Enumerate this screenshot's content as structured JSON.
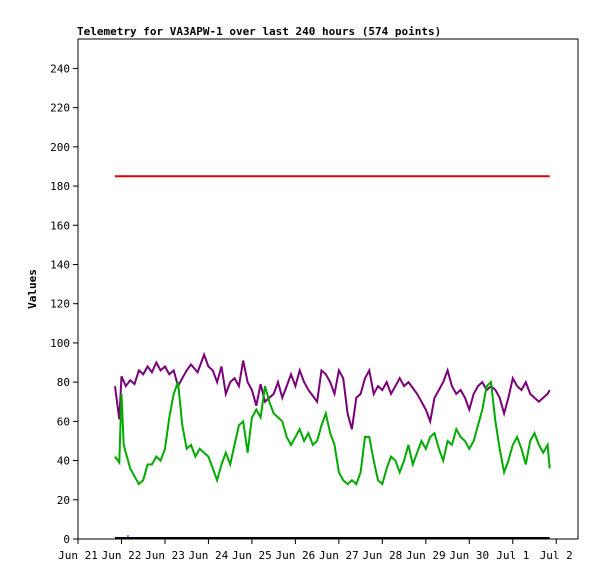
{
  "chart_data": {
    "type": "line",
    "title": "Telemetry for VA3APW-1 over last 240 hours (574 points)",
    "xlabel": "",
    "ylabel": "Values",
    "ylim": [
      0,
      255
    ],
    "xlim": [
      0,
      11.5
    ],
    "x_ticks": [
      {
        "x": 0,
        "label": "Jun 21"
      },
      {
        "x": 1,
        "label": "Jun 22"
      },
      {
        "x": 2,
        "label": "Jun 23"
      },
      {
        "x": 3,
        "label": "Jun 24"
      },
      {
        "x": 4,
        "label": "Jun 25"
      },
      {
        "x": 5,
        "label": "Jun 26"
      },
      {
        "x": 6,
        "label": "Jun 27"
      },
      {
        "x": 7,
        "label": "Jun 28"
      },
      {
        "x": 8,
        "label": "Jun 29"
      },
      {
        "x": 9,
        "label": "Jun 30"
      },
      {
        "x": 10,
        "label": "Jul 1"
      },
      {
        "x": 11,
        "label": "Jul 2"
      }
    ],
    "y_ticks": [
      0,
      20,
      40,
      60,
      80,
      100,
      120,
      140,
      160,
      180,
      200,
      220,
      240
    ],
    "grid": false,
    "series": [
      {
        "color": "#dd0000",
        "points": [
          [
            0.85,
            185
          ],
          [
            10.85,
            185
          ]
        ]
      },
      {
        "color": "#7a007a",
        "points": [
          [
            0.85,
            78
          ],
          [
            0.95,
            61
          ],
          [
            1.0,
            83
          ],
          [
            1.1,
            78
          ],
          [
            1.2,
            81
          ],
          [
            1.3,
            79
          ],
          [
            1.4,
            86
          ],
          [
            1.5,
            84
          ],
          [
            1.6,
            88
          ],
          [
            1.7,
            85
          ],
          [
            1.8,
            90
          ],
          [
            1.9,
            86
          ],
          [
            2.0,
            88
          ],
          [
            2.1,
            84
          ],
          [
            2.2,
            86
          ],
          [
            2.3,
            78
          ],
          [
            2.4,
            82
          ],
          [
            2.5,
            86
          ],
          [
            2.6,
            89
          ],
          [
            2.75,
            85
          ],
          [
            2.9,
            94
          ],
          [
            3.0,
            88
          ],
          [
            3.1,
            86
          ],
          [
            3.2,
            80
          ],
          [
            3.3,
            88
          ],
          [
            3.4,
            74
          ],
          [
            3.5,
            80
          ],
          [
            3.6,
            82
          ],
          [
            3.7,
            78
          ],
          [
            3.8,
            91
          ],
          [
            3.9,
            80
          ],
          [
            4.0,
            76
          ],
          [
            4.1,
            68
          ],
          [
            4.2,
            79
          ],
          [
            4.3,
            70
          ],
          [
            4.4,
            72
          ],
          [
            4.5,
            74
          ],
          [
            4.6,
            80
          ],
          [
            4.7,
            72
          ],
          [
            4.8,
            78
          ],
          [
            4.9,
            84
          ],
          [
            5.0,
            78
          ],
          [
            5.1,
            86
          ],
          [
            5.2,
            80
          ],
          [
            5.3,
            76
          ],
          [
            5.4,
            73
          ],
          [
            5.5,
            70
          ],
          [
            5.6,
            86
          ],
          [
            5.7,
            84
          ],
          [
            5.8,
            80
          ],
          [
            5.9,
            74
          ],
          [
            6.0,
            86
          ],
          [
            6.1,
            82
          ],
          [
            6.2,
            64
          ],
          [
            6.3,
            56
          ],
          [
            6.4,
            72
          ],
          [
            6.5,
            74
          ],
          [
            6.6,
            82
          ],
          [
            6.7,
            86
          ],
          [
            6.8,
            74
          ],
          [
            6.9,
            78
          ],
          [
            7.0,
            76
          ],
          [
            7.1,
            80
          ],
          [
            7.2,
            74
          ],
          [
            7.3,
            78
          ],
          [
            7.4,
            82
          ],
          [
            7.5,
            78
          ],
          [
            7.6,
            80
          ],
          [
            7.7,
            77
          ],
          [
            7.8,
            74
          ],
          [
            7.9,
            70
          ],
          [
            8.0,
            66
          ],
          [
            8.1,
            60
          ],
          [
            8.2,
            72
          ],
          [
            8.3,
            76
          ],
          [
            8.4,
            80
          ],
          [
            8.5,
            86
          ],
          [
            8.6,
            78
          ],
          [
            8.7,
            74
          ],
          [
            8.8,
            76
          ],
          [
            8.9,
            72
          ],
          [
            9.0,
            66
          ],
          [
            9.1,
            74
          ],
          [
            9.2,
            78
          ],
          [
            9.3,
            80
          ],
          [
            9.4,
            76
          ],
          [
            9.5,
            78
          ],
          [
            9.6,
            76
          ],
          [
            9.7,
            72
          ],
          [
            9.8,
            64
          ],
          [
            9.9,
            72
          ],
          [
            10.0,
            82
          ],
          [
            10.1,
            78
          ],
          [
            10.2,
            76
          ],
          [
            10.3,
            80
          ],
          [
            10.4,
            74
          ],
          [
            10.5,
            72
          ],
          [
            10.6,
            70
          ],
          [
            10.7,
            72
          ],
          [
            10.8,
            74
          ],
          [
            10.85,
            76
          ]
        ]
      },
      {
        "color": "#00aa00",
        "points": [
          [
            0.85,
            42
          ],
          [
            0.95,
            39
          ],
          [
            1.0,
            74
          ],
          [
            1.05,
            48
          ],
          [
            1.1,
            44
          ],
          [
            1.2,
            36
          ],
          [
            1.3,
            32
          ],
          [
            1.4,
            28
          ],
          [
            1.5,
            30
          ],
          [
            1.6,
            38
          ],
          [
            1.7,
            38
          ],
          [
            1.8,
            42
          ],
          [
            1.9,
            40
          ],
          [
            2.0,
            46
          ],
          [
            2.1,
            62
          ],
          [
            2.2,
            74
          ],
          [
            2.3,
            80
          ],
          [
            2.4,
            58
          ],
          [
            2.5,
            46
          ],
          [
            2.6,
            48
          ],
          [
            2.7,
            42
          ],
          [
            2.8,
            46
          ],
          [
            2.9,
            44
          ],
          [
            3.0,
            42
          ],
          [
            3.1,
            36
          ],
          [
            3.2,
            30
          ],
          [
            3.3,
            38
          ],
          [
            3.4,
            44
          ],
          [
            3.5,
            38
          ],
          [
            3.6,
            48
          ],
          [
            3.7,
            58
          ],
          [
            3.8,
            60
          ],
          [
            3.9,
            44
          ],
          [
            4.0,
            62
          ],
          [
            4.1,
            66
          ],
          [
            4.2,
            62
          ],
          [
            4.3,
            78
          ],
          [
            4.4,
            70
          ],
          [
            4.5,
            64
          ],
          [
            4.6,
            62
          ],
          [
            4.7,
            60
          ],
          [
            4.8,
            52
          ],
          [
            4.9,
            48
          ],
          [
            5.0,
            52
          ],
          [
            5.1,
            56
          ],
          [
            5.2,
            50
          ],
          [
            5.3,
            54
          ],
          [
            5.4,
            48
          ],
          [
            5.5,
            50
          ],
          [
            5.6,
            58
          ],
          [
            5.7,
            64
          ],
          [
            5.8,
            54
          ],
          [
            5.9,
            48
          ],
          [
            6.0,
            34
          ],
          [
            6.1,
            30
          ],
          [
            6.2,
            28
          ],
          [
            6.3,
            30
          ],
          [
            6.4,
            28
          ],
          [
            6.5,
            34
          ],
          [
            6.6,
            52
          ],
          [
            6.7,
            52
          ],
          [
            6.8,
            40
          ],
          [
            6.9,
            30
          ],
          [
            7.0,
            28
          ],
          [
            7.1,
            36
          ],
          [
            7.2,
            42
          ],
          [
            7.3,
            40
          ],
          [
            7.4,
            34
          ],
          [
            7.5,
            40
          ],
          [
            7.6,
            48
          ],
          [
            7.7,
            38
          ],
          [
            7.8,
            44
          ],
          [
            7.9,
            50
          ],
          [
            8.0,
            46
          ],
          [
            8.1,
            52
          ],
          [
            8.2,
            54
          ],
          [
            8.3,
            46
          ],
          [
            8.4,
            40
          ],
          [
            8.5,
            50
          ],
          [
            8.6,
            48
          ],
          [
            8.7,
            56
          ],
          [
            8.8,
            52
          ],
          [
            8.9,
            50
          ],
          [
            9.0,
            46
          ],
          [
            9.1,
            50
          ],
          [
            9.2,
            58
          ],
          [
            9.3,
            66
          ],
          [
            9.4,
            78
          ],
          [
            9.5,
            80
          ],
          [
            9.6,
            60
          ],
          [
            9.7,
            46
          ],
          [
            9.8,
            34
          ],
          [
            9.9,
            40
          ],
          [
            10.0,
            48
          ],
          [
            10.1,
            52
          ],
          [
            10.2,
            46
          ],
          [
            10.3,
            38
          ],
          [
            10.4,
            50
          ],
          [
            10.5,
            54
          ],
          [
            10.6,
            48
          ],
          [
            10.7,
            44
          ],
          [
            10.8,
            48
          ],
          [
            10.85,
            36
          ]
        ]
      },
      {
        "color": "#000000",
        "points": [
          [
            0.85,
            0.5
          ],
          [
            10.85,
            0.5
          ]
        ]
      },
      {
        "color": "#0000cc",
        "points": [
          [
            1.15,
            0.5
          ],
          [
            1.15,
            2
          ]
        ]
      }
    ]
  }
}
